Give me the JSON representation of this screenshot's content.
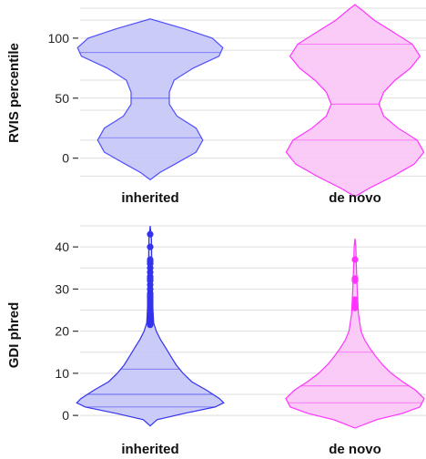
{
  "chart_data": [
    {
      "type": "violin",
      "ylabel": "RVIS percentile",
      "ylim": [
        -20,
        128
      ],
      "yticks": [
        0,
        50,
        100
      ],
      "gridlines": [
        -15,
        0,
        15,
        40,
        50,
        65,
        90,
        100,
        115,
        125
      ],
      "grid": true,
      "categories": [
        "inherited",
        "de novo"
      ],
      "series": [
        {
          "category": "inherited",
          "color": "#4f4fff",
          "fill": "#c5c5f7",
          "median": 50,
          "quartiles": [
            17,
            88
          ],
          "profile": [
            [
              -18,
              0.0
            ],
            [
              -12,
              0.1
            ],
            [
              -5,
              0.26
            ],
            [
              5,
              0.48
            ],
            [
              15,
              0.55
            ],
            [
              25,
              0.48
            ],
            [
              35,
              0.28
            ],
            [
              45,
              0.2
            ],
            [
              55,
              0.2
            ],
            [
              65,
              0.25
            ],
            [
              75,
              0.45
            ],
            [
              85,
              0.72
            ],
            [
              92,
              0.76
            ],
            [
              100,
              0.65
            ],
            [
              108,
              0.35
            ],
            [
              116,
              0.0
            ]
          ]
        },
        {
          "category": "de novo",
          "color": "#ff33ff",
          "fill": "#f9c5f5",
          "median": 45,
          "quartiles": [
            15,
            95
          ],
          "profile": [
            [
              -32,
              0.0
            ],
            [
              -25,
              0.15
            ],
            [
              -15,
              0.4
            ],
            [
              -5,
              0.62
            ],
            [
              5,
              0.72
            ],
            [
              15,
              0.65
            ],
            [
              25,
              0.45
            ],
            [
              35,
              0.3
            ],
            [
              45,
              0.25
            ],
            [
              55,
              0.3
            ],
            [
              65,
              0.42
            ],
            [
              75,
              0.58
            ],
            [
              85,
              0.68
            ],
            [
              95,
              0.6
            ],
            [
              105,
              0.4
            ],
            [
              115,
              0.2
            ],
            [
              123,
              0.08
            ],
            [
              128,
              0.0
            ]
          ]
        }
      ]
    },
    {
      "type": "violin",
      "ylabel": "GDI phred",
      "ylim": [
        -3,
        45
      ],
      "yticks": [
        0,
        10,
        20,
        30,
        40
      ],
      "grid": true,
      "categories": [
        "inherited",
        "de novo"
      ],
      "series": [
        {
          "category": "inherited",
          "color": "#3333ee",
          "fill": "#c5c5f7",
          "median": 5,
          "quartiles": [
            2,
            11
          ],
          "profile": [
            [
              -2.5,
              0.0
            ],
            [
              -1,
              0.08
            ],
            [
              0.5,
              0.4
            ],
            [
              2,
              0.75
            ],
            [
              3,
              0.85
            ],
            [
              4,
              0.8
            ],
            [
              6,
              0.65
            ],
            [
              8,
              0.48
            ],
            [
              10,
              0.38
            ],
            [
              12,
              0.3
            ],
            [
              14,
              0.24
            ],
            [
              16,
              0.18
            ],
            [
              18,
              0.12
            ],
            [
              20,
              0.07
            ],
            [
              22,
              0.04
            ],
            [
              26,
              0.03
            ],
            [
              34,
              0.02
            ],
            [
              42,
              0.015
            ],
            [
              45,
              0.0
            ]
          ],
          "outliers": [
            21.5,
            22,
            22.5,
            23,
            23.5,
            24,
            24.5,
            25,
            25.5,
            26,
            26.5,
            27,
            27.5,
            28,
            28.5,
            29,
            30,
            31,
            32,
            32.5,
            33,
            34,
            35,
            36,
            36.5,
            37,
            40,
            43
          ]
        },
        {
          "category": "de novo",
          "color": "#ff33ff",
          "fill": "#f9c5f5",
          "median": 7,
          "quartiles": [
            3,
            15
          ],
          "profile": [
            [
              -3,
              0.0
            ],
            [
              -1,
              0.25
            ],
            [
              0.5,
              0.55
            ],
            [
              2,
              0.75
            ],
            [
              4,
              0.8
            ],
            [
              6,
              0.7
            ],
            [
              8,
              0.55
            ],
            [
              10,
              0.42
            ],
            [
              12,
              0.32
            ],
            [
              14,
              0.24
            ],
            [
              16,
              0.17
            ],
            [
              18,
              0.11
            ],
            [
              20,
              0.07
            ],
            [
              24,
              0.04
            ],
            [
              30,
              0.025
            ],
            [
              36,
              0.015
            ],
            [
              40,
              0.01
            ],
            [
              42,
              0.0
            ]
          ],
          "outliers": [
            25.5,
            26,
            26.5,
            27,
            27.5,
            32,
            32.5,
            37
          ]
        }
      ]
    }
  ]
}
